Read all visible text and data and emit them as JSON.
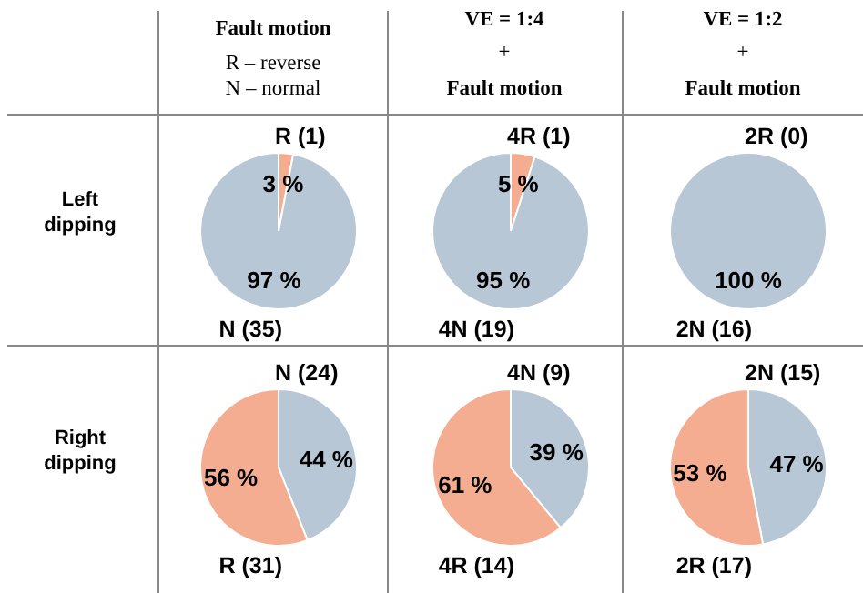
{
  "chart_data": [
    {
      "type": "other",
      "annotations": [
        "Fault motion",
        "R – reverse",
        "N – normal",
        "VE = 1:4",
        "+",
        "Fault motion",
        "VE = 1:2",
        "+",
        "Fault motion",
        "Left dipping",
        "Right dipping"
      ]
    },
    {
      "type": "pie",
      "categories": [
        "R (1)",
        "N (35)"
      ],
      "values": [
        3,
        97
      ],
      "colors": [
        "#f4ad91",
        "#b8c7d5"
      ],
      "value_labels": [
        "3 %",
        "97 %"
      ]
    },
    {
      "type": "pie",
      "categories": [
        "4R (1)",
        "4N (19)"
      ],
      "values": [
        5,
        95
      ],
      "colors": [
        "#f4ad91",
        "#b8c7d5"
      ],
      "value_labels": [
        "5 %",
        "95 %"
      ]
    },
    {
      "type": "pie",
      "categories": [
        "2R (0)",
        "2N (16)"
      ],
      "values": [
        0,
        100
      ],
      "colors": [
        "#f4ad91",
        "#b8c7d5"
      ],
      "value_labels": [
        null,
        "100 %"
      ]
    },
    {
      "type": "pie",
      "categories": [
        "N (24)",
        "R (31)"
      ],
      "values": [
        44,
        56
      ],
      "colors": [
        "#b8c7d5",
        "#f4ad91"
      ],
      "value_labels": [
        "44 %",
        "56 %"
      ]
    },
    {
      "type": "pie",
      "categories": [
        "4N (9)",
        "4R (14)"
      ],
      "values": [
        39,
        61
      ],
      "colors": [
        "#b8c7d5",
        "#f4ad91"
      ],
      "value_labels": [
        "39 %",
        "61 %"
      ]
    },
    {
      "type": "pie",
      "categories": [
        "2N (15)",
        "2R (17)"
      ],
      "values": [
        47,
        53
      ],
      "colors": [
        "#b8c7d5",
        "#f4ad91"
      ],
      "value_labels": [
        "47 %",
        "53 %"
      ]
    }
  ]
}
